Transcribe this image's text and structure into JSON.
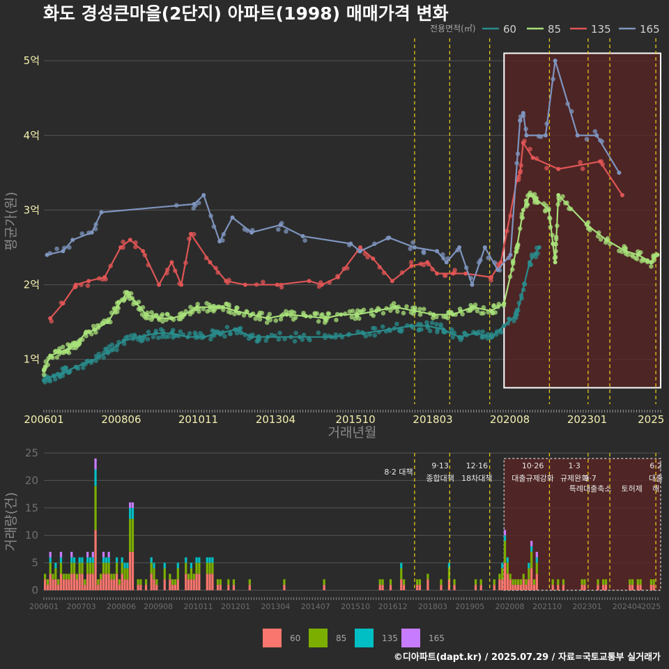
{
  "title": "화도 경성큰마을(2단지) 아파트(1998) 매매가격 변화",
  "source_text": "©디아파트(dapt.kr) / 2025.07.29 / 자료=국토교통부 실거래가",
  "colors": {
    "background": "#2b2b2b",
    "grid": "#555555",
    "line_60": "#2a8c8c",
    "line_85": "#a8e07a",
    "line_135": "#e05555",
    "line_165": "#7f95bf",
    "bar_60": "#f8766d",
    "bar_85": "#7cae00",
    "bar_135": "#00bfc4",
    "bar_165": "#c77cff",
    "highlight": "#5a2424",
    "event_line": "#e6c619"
  },
  "chart_data": [
    {
      "type": "line",
      "role": "price",
      "ylabel": "평균가(원)",
      "xlabel": "거래년월",
      "x_ticks": [
        "200601",
        "200806",
        "201011",
        "201304",
        "201510",
        "201803",
        "202008",
        "202301",
        "2025"
      ],
      "y_ticks": [
        "1억",
        "2억",
        "3억",
        "4억",
        "5억"
      ],
      "ylim": [
        0.4,
        5.3
      ],
      "legend_title": "전용면적(㎡)",
      "legend_position": "top-right",
      "grid": true,
      "series": [
        {
          "name": "60",
          "x": [
            2006.0,
            2006.3,
            2006.6,
            2007.0,
            2007.5,
            2008.0,
            2008.5,
            2009.0,
            2009.5,
            2010.0,
            2010.5,
            2011.0,
            2011.5,
            2012.0,
            2012.5,
            2013.0,
            2014.0,
            2015.0,
            2016.0,
            2016.8,
            2017.5,
            2018.0,
            2018.5,
            2019.0,
            2019.5,
            2020.0,
            2020.4,
            2020.8,
            2021.2,
            2021.5
          ],
          "values": [
            0.72,
            0.78,
            0.82,
            0.9,
            0.98,
            1.1,
            1.25,
            1.3,
            1.35,
            1.35,
            1.3,
            1.3,
            1.35,
            1.4,
            1.3,
            1.3,
            1.3,
            1.3,
            1.35,
            1.4,
            1.45,
            1.45,
            1.4,
            1.3,
            1.35,
            1.3,
            1.45,
            1.6,
            2.3,
            2.5
          ]
        },
        {
          "name": "85",
          "x": [
            2006.0,
            2006.2,
            2006.5,
            2006.8,
            2007.0,
            2007.3,
            2007.6,
            2008.0,
            2008.3,
            2008.6,
            2008.9,
            2009.2,
            2009.6,
            2010.0,
            2010.4,
            2010.8,
            2011.2,
            2011.6,
            2012.0,
            2012.5,
            2013.0,
            2013.6,
            2014.2,
            2014.8,
            2015.3,
            2015.8,
            2016.4,
            2017.0,
            2017.6,
            2018.2,
            2018.8,
            2019.4,
            2020.0,
            2020.4,
            2020.8,
            2021.0,
            2021.2,
            2021.4,
            2021.8,
            2022.0,
            2022.1,
            2023.0,
            2023.6,
            2024.2,
            2024.6,
            2025.0,
            2025.2
          ],
          "values": [
            0.85,
            1.05,
            1.1,
            1.15,
            1.2,
            1.35,
            1.4,
            1.5,
            1.7,
            1.9,
            1.75,
            1.6,
            1.55,
            1.55,
            1.6,
            1.7,
            1.7,
            1.7,
            1.65,
            1.6,
            1.55,
            1.6,
            1.58,
            1.55,
            1.6,
            1.6,
            1.65,
            1.7,
            1.65,
            1.6,
            1.6,
            1.7,
            1.65,
            1.75,
            2.5,
            3.0,
            3.2,
            3.15,
            3.0,
            2.3,
            3.2,
            2.8,
            2.6,
            2.45,
            2.4,
            2.3,
            2.4
          ]
        },
        {
          "name": "135",
          "x": [
            2006.2,
            2006.6,
            2007.0,
            2007.4,
            2007.9,
            2008.4,
            2008.7,
            2009.1,
            2009.6,
            2010.0,
            2010.3,
            2010.6,
            2011.2,
            2011.7,
            2012.3,
            2013.3,
            2014.3,
            2014.7,
            2015.2,
            2015.9,
            2016.3,
            2016.9,
            2017.5,
            2018.0,
            2018.3,
            2018.8,
            2019.2,
            2020.0,
            2020.3,
            2020.8,
            2020.9,
            2021.0,
            2021.3,
            2022.1,
            2023.4,
            2024.1
          ],
          "values": [
            1.55,
            1.75,
            2.0,
            2.05,
            2.1,
            2.5,
            2.6,
            2.45,
            2.0,
            2.3,
            2.0,
            2.68,
            2.3,
            2.05,
            2.0,
            2.0,
            2.05,
            2.0,
            2.1,
            2.5,
            2.35,
            2.05,
            2.25,
            2.3,
            2.15,
            2.15,
            2.15,
            2.1,
            2.3,
            3.4,
            3.5,
            3.9,
            3.7,
            3.55,
            3.65,
            3.2
          ]
        },
        {
          "name": "165",
          "x": [
            2006.1,
            2006.6,
            2006.9,
            2007.5,
            2007.8,
            2010.7,
            2011.0,
            2011.5,
            2011.9,
            2012.5,
            2013.4,
            2014.1,
            2015.6,
            2015.9,
            2016.8,
            2017.6,
            2018.3,
            2018.6,
            2019.0,
            2019.4,
            2019.8,
            2020.2,
            2020.6,
            2020.9,
            2021.0,
            2021.1,
            2021.7,
            2022.0,
            2022.7,
            2023.3,
            2024.0
          ],
          "values": [
            2.4,
            2.45,
            2.6,
            2.7,
            2.97,
            3.08,
            3.2,
            2.58,
            2.9,
            2.7,
            2.8,
            2.65,
            2.55,
            2.45,
            2.63,
            2.5,
            2.45,
            2.3,
            2.5,
            2.0,
            2.5,
            2.2,
            2.4,
            4.2,
            4.3,
            4.0,
            4.0,
            5.0,
            4.0,
            4.0,
            3.5
          ]
        }
      ]
    },
    {
      "type": "bar",
      "role": "volume",
      "stacked": true,
      "ylabel": "거래량(건)",
      "x_ticks": [
        "200601",
        "200703",
        "200806",
        "200908",
        "201011",
        "201201",
        "201304",
        "201407",
        "201510",
        "201612",
        "201803",
        "201905",
        "202008",
        "202110",
        "202301",
        "202404",
        "2025"
      ],
      "y_ticks": [
        "0",
        "5",
        "10",
        "15",
        "20",
        "25"
      ],
      "ylim": [
        0,
        25
      ],
      "series_names": [
        "60",
        "85",
        "135",
        "165"
      ],
      "legend_position": "bottom"
    }
  ],
  "events": [
    {
      "label_date": "8·2",
      "label_text": "대책"
    },
    {
      "label_date": "9·13",
      "label_text": "종합대책"
    },
    {
      "label_date": "12·16",
      "label_text": "18차대책"
    },
    {
      "label_date": "10·26",
      "label_text": "대출규제강화"
    },
    {
      "label_date": "1·3",
      "label_text": "규제완화"
    },
    {
      "label_date": "9·7",
      "label_text": "특례대출축소"
    },
    {
      "label_date": "",
      "label_text": "토허제"
    },
    {
      "label_date": "6·2",
      "label_text": "대출"
    },
    {
      "label_date": "",
      "label_text": "해"
    }
  ]
}
